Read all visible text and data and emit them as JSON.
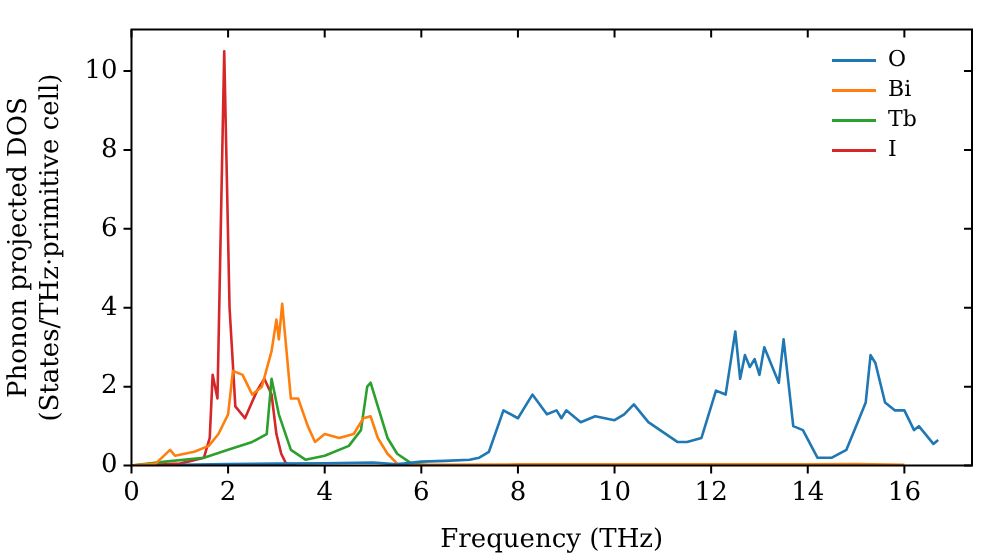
{
  "chart_data": {
    "type": "line",
    "xlabel": "Frequency (THz)",
    "ylabel": "Phonon projected DOS\n(States/THz·primitive cell)",
    "xlim": [
      0,
      17.4
    ],
    "ylim": [
      0,
      11.05
    ],
    "xticks": [
      0,
      2,
      4,
      6,
      8,
      10,
      12,
      14,
      16
    ],
    "yticks": [
      0,
      2,
      4,
      6,
      8,
      10
    ],
    "grid": false,
    "legend": "top right",
    "marker": "none",
    "line_style": "solid",
    "series": [
      {
        "name": "O",
        "color": "#1f77b4",
        "x": [
          1,
          2,
          3,
          4,
          5,
          5.5,
          6,
          6.5,
          7,
          7.2,
          7.4,
          7.7,
          8.0,
          8.3,
          8.6,
          8.8,
          8.9,
          9.0,
          9.3,
          9.6,
          10.0,
          10.2,
          10.4,
          10.7,
          11.3,
          11.5,
          11.8,
          12.0,
          12.1,
          12.3,
          12.5,
          12.6,
          12.7,
          12.8,
          12.9,
          13.0,
          13.1,
          13.4,
          13.5,
          13.7,
          13.9,
          14.2,
          14.5,
          14.8,
          15.0,
          15.2,
          15.3,
          15.4,
          15.6,
          15.8,
          16.0,
          16.2,
          16.3,
          16.6,
          16.7
        ],
        "values": [
          0.02,
          0.04,
          0.05,
          0.06,
          0.08,
          0.03,
          0.1,
          0.12,
          0.15,
          0.2,
          0.35,
          1.4,
          1.2,
          1.8,
          1.3,
          1.4,
          1.2,
          1.4,
          1.1,
          1.25,
          1.15,
          1.3,
          1.55,
          1.1,
          0.6,
          0.6,
          0.7,
          1.5,
          1.9,
          1.8,
          3.4,
          2.2,
          2.8,
          2.5,
          2.7,
          2.3,
          3.0,
          2.1,
          3.2,
          1.0,
          0.9,
          0.2,
          0.2,
          0.4,
          1.0,
          1.6,
          2.8,
          2.6,
          1.6,
          1.4,
          1.4,
          0.9,
          1.0,
          0.55,
          0.65
        ]
      },
      {
        "name": "Bi",
        "color": "#ff7f0e",
        "x": [
          0,
          0.5,
          0.8,
          0.9,
          1.3,
          1.6,
          1.8,
          2.0,
          2.1,
          2.3,
          2.5,
          2.7,
          2.9,
          3.0,
          3.05,
          3.12,
          3.3,
          3.45,
          3.65,
          3.8,
          4.0,
          4.3,
          4.6,
          4.8,
          4.95,
          5.1,
          5.3,
          5.5,
          5.7,
          6,
          8,
          10,
          12,
          14,
          15,
          16
        ],
        "values": [
          0,
          0.05,
          0.4,
          0.25,
          0.35,
          0.5,
          0.8,
          1.3,
          2.4,
          2.3,
          1.8,
          2.0,
          2.9,
          3.7,
          3.2,
          4.1,
          1.7,
          1.7,
          1.0,
          0.6,
          0.8,
          0.7,
          0.8,
          1.2,
          1.25,
          0.7,
          0.3,
          0.05,
          0.02,
          0.02,
          0.03,
          0.03,
          0.03,
          0.03,
          0.04,
          0.02
        ]
      },
      {
        "name": "Tb",
        "color": "#2ca02c",
        "x": [
          0,
          0.7,
          1.5,
          2.0,
          2.5,
          2.8,
          2.9,
          3.05,
          3.3,
          3.6,
          4.0,
          4.5,
          4.75,
          4.88,
          4.95,
          5.1,
          5.3,
          5.5,
          5.8,
          6.2
        ],
        "values": [
          0,
          0.1,
          0.2,
          0.4,
          0.6,
          0.8,
          2.2,
          1.3,
          0.4,
          0.15,
          0.25,
          0.5,
          0.9,
          2.0,
          2.1,
          1.5,
          0.7,
          0.3,
          0.05,
          0
        ]
      },
      {
        "name": "I",
        "color": "#d62728",
        "x": [
          0,
          1.0,
          1.5,
          1.62,
          1.68,
          1.78,
          1.92,
          2.03,
          2.15,
          2.35,
          2.6,
          2.75,
          2.9,
          3.0,
          3.1,
          3.2,
          3.4
        ],
        "values": [
          0,
          0.05,
          0.2,
          0.7,
          2.3,
          1.7,
          10.5,
          4.0,
          1.5,
          1.2,
          1.9,
          2.2,
          1.8,
          0.8,
          0.3,
          0.05,
          0
        ]
      }
    ]
  }
}
